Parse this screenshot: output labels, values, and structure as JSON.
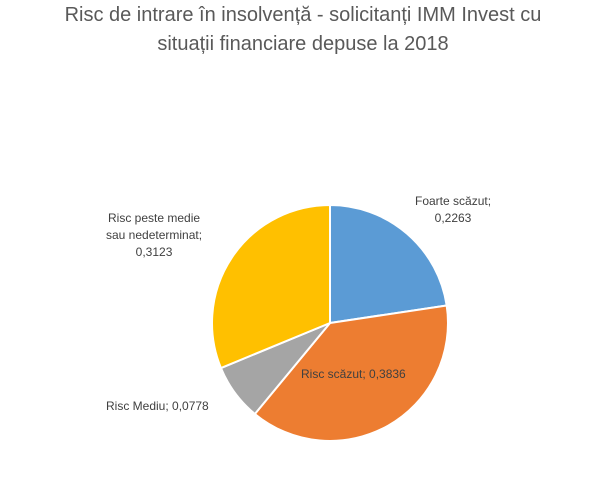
{
  "chart_data": {
    "type": "pie",
    "title_lines": [
      "Risc de intrare în insolvență - solicitanți IMM Invest cu",
      "situații financiare depuse la 2018"
    ],
    "slices": [
      {
        "label_lines": [
          "Foarte scăzut;",
          "0,2263"
        ],
        "value": 0.2263,
        "color": "#5b9bd5"
      },
      {
        "label_lines": [
          "Risc scăzut; 0,3836"
        ],
        "value": 0.3836,
        "color": "#ed7d31"
      },
      {
        "label_lines": [
          "Risc Mediu; 0,0778"
        ],
        "value": 0.0778,
        "color": "#a5a5a5"
      },
      {
        "label_lines": [
          "Risc peste medie",
          "sau nedeterminat;",
          "0,3123"
        ],
        "value": 0.3123,
        "color": "#ffc000"
      }
    ],
    "legend": "none",
    "start_angle": "12 o'clock",
    "direction": "clockwise"
  }
}
